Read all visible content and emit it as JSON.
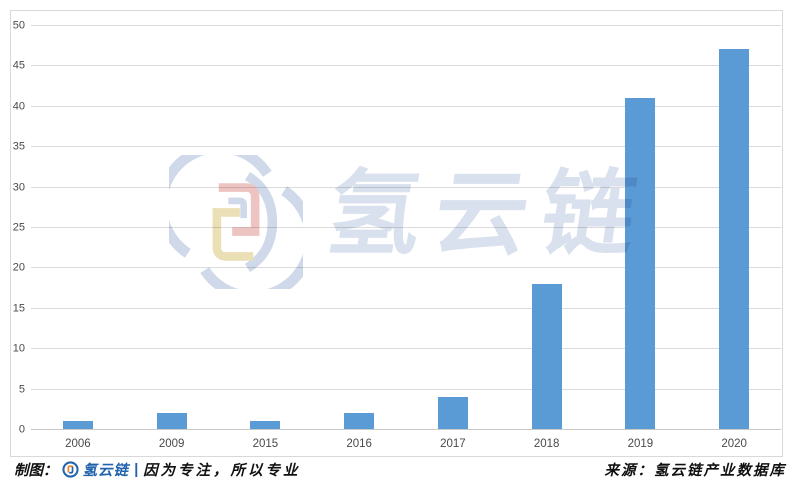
{
  "chart_data": {
    "type": "bar",
    "title": "",
    "xlabel": "",
    "ylabel": "",
    "categories": [
      "2006",
      "2009",
      "2015",
      "2016",
      "2017",
      "2018",
      "2019",
      "2020"
    ],
    "values": [
      1,
      2,
      1,
      2,
      4,
      18,
      41,
      47
    ],
    "ylim": [
      0,
      50
    ],
    "yticks": [
      0,
      5,
      10,
      15,
      20,
      25,
      30,
      35,
      40,
      45,
      50
    ],
    "grid": true,
    "legend_position": "none"
  },
  "watermark": {
    "text": "氢云链",
    "logo_name": "hydrogen-cloud-chain-logo"
  },
  "footer": {
    "left_prefix": "制图：",
    "left_brand": "氢云链",
    "left_separator": "|",
    "left_slogan": "因为专注，所以专业",
    "right_source": "来源：氢云链产业数据库"
  },
  "colors": {
    "bar": "#5b9bd5",
    "grid": "#dbdbdb",
    "zero_line": "#c9c9c9",
    "axis_text": "#4a4a4a",
    "brand_blue": "#2163ac",
    "footer_text": "#111111",
    "watermark_text": "#d9e0ee",
    "watermark_ring": "#cfd9ea",
    "watermark_pink": "#eec4c2",
    "watermark_yellow": "#ebdfb5"
  }
}
